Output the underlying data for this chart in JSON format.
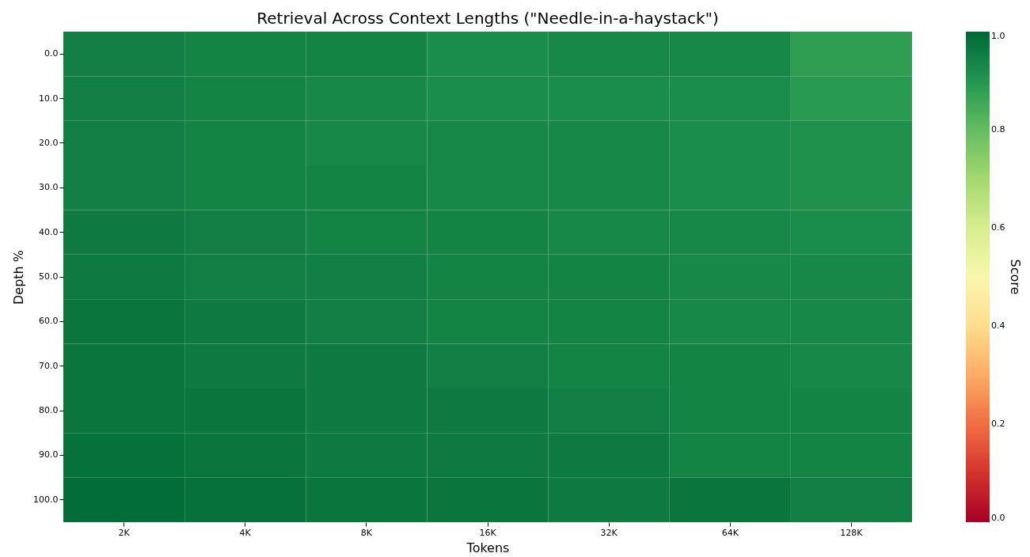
{
  "chart_data": {
    "type": "heatmap",
    "title": "Retrieval Across Context Lengths (\"Needle-in-a-haystack\")",
    "xlabel": "Tokens",
    "ylabel": "Depth %",
    "clabel": "Score",
    "categories": [
      "2K",
      "4K",
      "8K",
      "16K",
      "32K",
      "64K",
      "128K"
    ],
    "y_categories": [
      "0.0",
      "10.0",
      "20.0",
      "30.0",
      "40.0",
      "50.0",
      "60.0",
      "70.0",
      "80.0",
      "90.0",
      "100.0"
    ],
    "cells": [
      [
        0.95,
        0.94,
        0.94,
        0.92,
        0.93,
        0.93,
        0.88
      ],
      [
        0.95,
        0.94,
        0.93,
        0.92,
        0.92,
        0.92,
        0.89
      ],
      [
        0.95,
        0.94,
        0.93,
        0.93,
        0.93,
        0.92,
        0.91
      ],
      [
        0.95,
        0.94,
        0.94,
        0.93,
        0.93,
        0.92,
        0.91
      ],
      [
        0.96,
        0.95,
        0.94,
        0.94,
        0.93,
        0.93,
        0.92
      ],
      [
        0.96,
        0.95,
        0.95,
        0.94,
        0.94,
        0.93,
        0.93
      ],
      [
        0.97,
        0.96,
        0.95,
        0.94,
        0.94,
        0.93,
        0.93
      ],
      [
        0.97,
        0.96,
        0.96,
        0.95,
        0.94,
        0.94,
        0.93
      ],
      [
        0.97,
        0.97,
        0.96,
        0.96,
        0.95,
        0.94,
        0.94
      ],
      [
        0.98,
        0.97,
        0.96,
        0.96,
        0.96,
        0.94,
        0.94
      ],
      [
        0.99,
        0.98,
        0.97,
        0.97,
        0.96,
        0.97,
        0.95
      ]
    ],
    "clim": [
      0,
      1
    ],
    "cticks": [
      {
        "value": 0,
        "label": "0.0"
      },
      {
        "value": 0.2,
        "label": "0.2"
      },
      {
        "value": 0.4,
        "label": "0.4"
      },
      {
        "value": 0.6,
        "label": "0.6"
      },
      {
        "value": 0.8,
        "label": "0.8"
      },
      {
        "value": 1,
        "label": "1.0"
      }
    ]
  }
}
